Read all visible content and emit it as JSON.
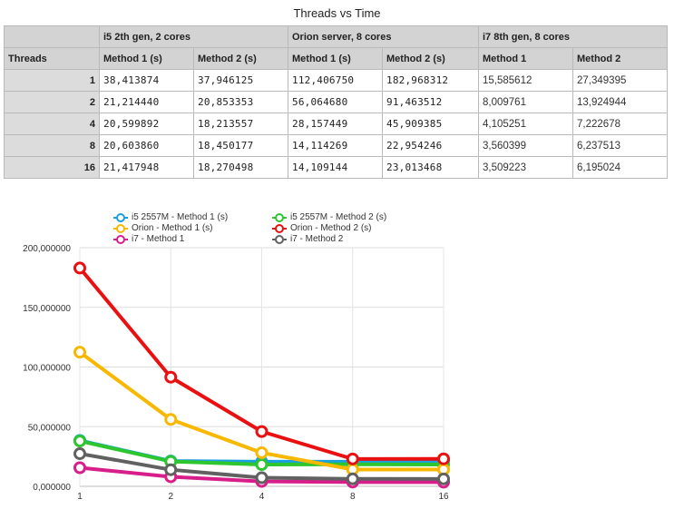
{
  "title": "Threads vs Time",
  "table": {
    "group_headers": [
      "i5 2th gen, 2 cores",
      "Orion server, 8 cores",
      "i7 8th gen, 8 cores"
    ],
    "row_header_label": "Threads",
    "column_headers": [
      "Method 1 (s)",
      "Method 2 (s)",
      "Method 1 (s)",
      "Method 2 (s)",
      "Method 1",
      "Method 2"
    ],
    "rows": [
      {
        "threads": "1",
        "cells": [
          "38,413874",
          "37,946125",
          "112,406750",
          "182,968312",
          "15,585612",
          "27,349395"
        ]
      },
      {
        "threads": "2",
        "cells": [
          "21,214440",
          "20,853353",
          "56,064680",
          "91,463512",
          "8,009761",
          "13,924944"
        ]
      },
      {
        "threads": "4",
        "cells": [
          "20,599892",
          "18,213557",
          "28,157449",
          "45,909385",
          "4,105251",
          "7,222678"
        ]
      },
      {
        "threads": "8",
        "cells": [
          "20,603860",
          "18,450177",
          "14,114269",
          "22,954246",
          "3,560399",
          "6,237513"
        ]
      },
      {
        "threads": "16",
        "cells": [
          "21,417948",
          "18,270498",
          "14,109144",
          "23,013468",
          "3,509223",
          "6,195024"
        ]
      }
    ]
  },
  "chart_data": {
    "type": "line",
    "categories": [
      "1",
      "2",
      "4",
      "8",
      "16"
    ],
    "y_tick_labels": [
      "0,000000",
      "50,000000",
      "100,000000",
      "150,000000",
      "200,000000"
    ],
    "ylim": [
      0,
      200
    ],
    "grid": true,
    "legend_position": "top",
    "series": [
      {
        "name": "i5 2557M - Method 1 (s)",
        "color": "#1a9fe0",
        "values": [
          38.413874,
          21.21444,
          20.599892,
          20.60386,
          21.417948
        ]
      },
      {
        "name": "i5 2557M - Method 2 (s)",
        "color": "#2ec62e",
        "values": [
          37.946125,
          20.853353,
          18.213557,
          18.450177,
          18.270498
        ]
      },
      {
        "name": "Orion - Method 1 (s)",
        "color": "#f8b800",
        "values": [
          112.40675,
          56.06468,
          28.157449,
          14.114269,
          14.109144
        ]
      },
      {
        "name": "Orion - Method 2 (s)",
        "color": "#e81010",
        "values": [
          182.968312,
          91.463512,
          45.909385,
          22.954246,
          23.013468
        ]
      },
      {
        "name": "i7 - Method 1",
        "color": "#d81e8a",
        "values": [
          15.585612,
          8.009761,
          4.105251,
          3.560399,
          3.509223
        ]
      },
      {
        "name": "i7 - Method 2",
        "color": "#616161",
        "values": [
          27.349395,
          13.924944,
          7.222678,
          6.237513,
          6.195024
        ]
      }
    ]
  }
}
